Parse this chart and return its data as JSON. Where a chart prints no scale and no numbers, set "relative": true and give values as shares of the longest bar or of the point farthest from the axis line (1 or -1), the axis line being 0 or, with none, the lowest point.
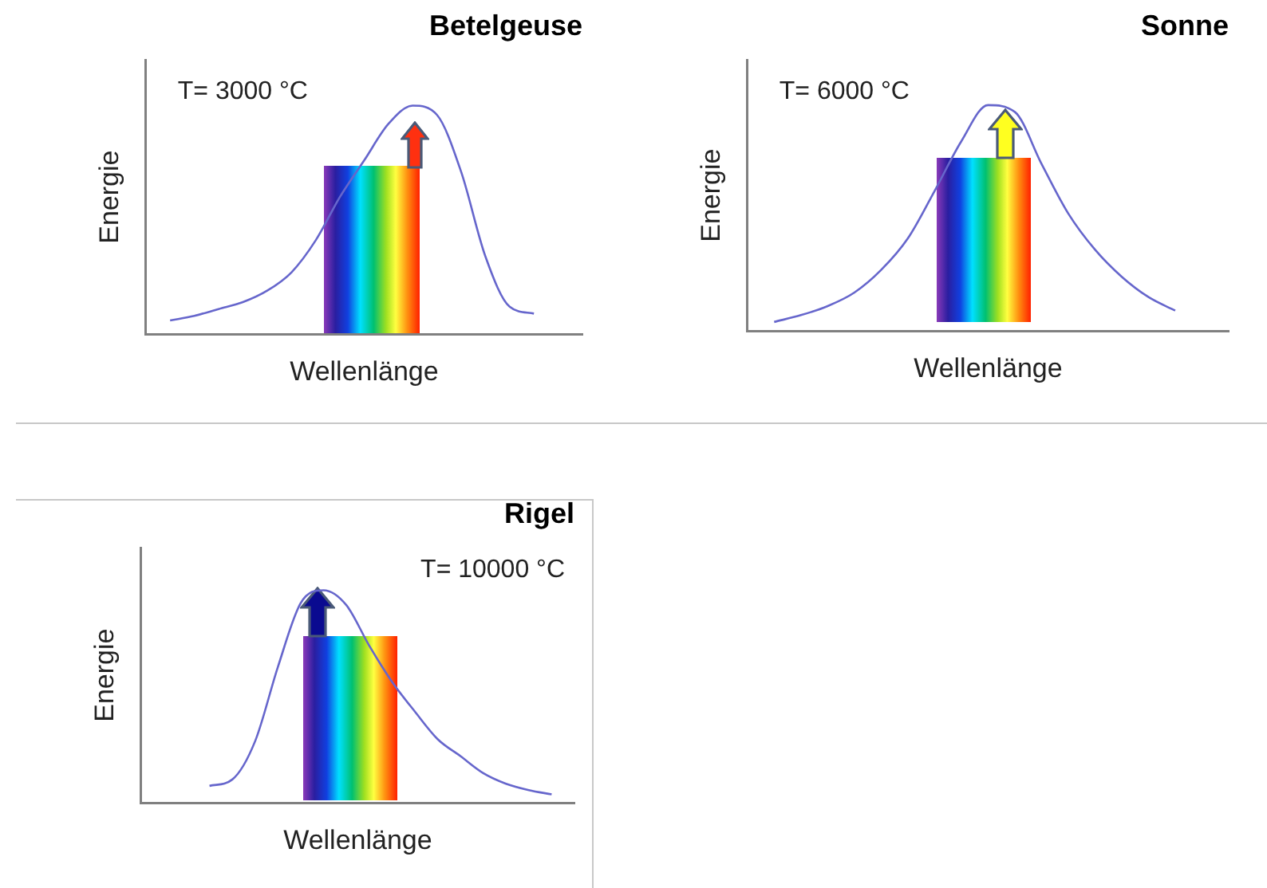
{
  "chart_data": [
    {
      "type": "line",
      "title": "Betelgeuse",
      "xlabel": "Wellenlänge",
      "ylabel": "Energie",
      "annotations": [
        "T= 3000 °C"
      ],
      "relative": true,
      "tick_labels": false,
      "marker": "none",
      "categories": [
        null,
        null,
        null,
        null,
        null,
        null,
        null,
        null,
        null,
        null,
        null,
        null,
        null,
        null,
        null,
        null,
        null,
        null,
        null
      ],
      "series": [
        {
          "color": "#6666cc",
          "values": [
            null,
            0.06,
            0.08,
            0.11,
            0.14,
            0.19,
            0.27,
            0.41,
            0.6,
            0.76,
            0.92,
            1,
            0.96,
            0.71,
            0.34,
            0.12,
            0.09,
            null,
            null
          ]
        }
      ]
    },
    {
      "type": "line",
      "title": "Sonne",
      "xlabel": "Wellenlänge",
      "ylabel": "Energie",
      "annotations": [
        "T= 6000 °C"
      ],
      "relative": true,
      "tick_labels": false,
      "marker": "none",
      "categories": [
        null,
        null,
        null,
        null,
        null,
        null,
        null,
        null,
        null,
        null,
        null,
        null,
        null,
        null,
        null,
        null,
        null,
        null,
        null
      ],
      "series": [
        {
          "color": "#6666cc",
          "values": [
            null,
            0.04,
            0.07,
            0.11,
            0.17,
            0.27,
            0.41,
            0.62,
            0.84,
            1,
            0.97,
            0.74,
            0.52,
            0.36,
            0.24,
            0.15,
            0.09,
            null,
            null
          ]
        }
      ]
    },
    {
      "type": "line",
      "title": "Rigel",
      "xlabel": "Wellenlänge",
      "ylabel": "Energie",
      "annotations": [
        "T= 10000 °C"
      ],
      "relative": true,
      "tick_labels": false,
      "marker": "none",
      "categories": [
        null,
        null,
        null,
        null,
        null,
        null,
        null,
        null,
        null,
        null,
        null,
        null,
        null,
        null,
        null,
        null,
        null,
        null,
        null,
        null
      ],
      "series": [
        {
          "color": "#6666cc",
          "values": [
            null,
            null,
            null,
            0.08,
            0.11,
            0.29,
            0.64,
            0.94,
            1,
            0.93,
            0.74,
            0.57,
            0.43,
            0.3,
            0.22,
            0.14,
            0.09,
            0.06,
            0.04,
            null
          ]
        }
      ]
    }
  ]
}
